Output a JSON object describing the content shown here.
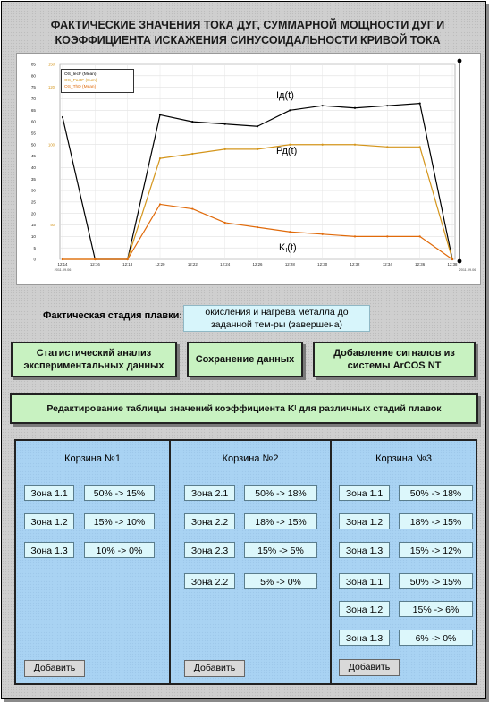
{
  "title_line1": "ФАКТИЧЕСКИЕ ЗНАЧЕНИЯ ТОКА ДУГ, СУММАРНОЙ МОЩНОСТИ ДУГ И",
  "title_line2": "КОЭФФИЦИЕНТА ИСКАЖЕНИЯ СИНУСОИДАЛЬНОСТИ КРИВОЙ ТОКА",
  "chart": {
    "legend": [
      "OS_IecF (Mean)",
      "OS_PactF (Sum)",
      "OS_ThD (Mean)"
    ],
    "labels": {
      "current": "Iд(t)",
      "power": "Рд(t)",
      "distortion_main": "K",
      "distortion_sub": "I",
      "distortion_tail": "(t)"
    },
    "left_ticks": [
      "85",
      "80",
      "75",
      "70",
      "65",
      "60",
      "55",
      "50",
      "45",
      "40",
      "35",
      "30",
      "25",
      "20",
      "15",
      "10",
      "5",
      "0"
    ],
    "right_ticks": [
      "150",
      "",
      "120",
      "",
      "",
      "",
      "",
      "100",
      "",
      "",
      "",
      "",
      "",
      "",
      "50",
      "",
      "",
      ""
    ],
    "x_ticks": [
      "12:14",
      "12:16",
      "12:18",
      "12:20",
      "12:22",
      "12:24",
      "12:26",
      "12:28",
      "12:30",
      "12:32",
      "12:34",
      "12:36",
      "12:38"
    ],
    "x_start_date": "2011.09.06",
    "x_end_date": "2011.09.06",
    "colors": {
      "current": "#000000",
      "power": "#d4951b",
      "distortion": "#e06a0a"
    }
  },
  "chart_data": {
    "type": "line",
    "x": [
      "12:14",
      "12:16",
      "12:18",
      "12:20",
      "12:22",
      "12:24",
      "12:26",
      "12:28",
      "12:30",
      "12:32",
      "12:34",
      "12:36",
      "12:38"
    ],
    "series": [
      {
        "name": "OS_IecF (Mean)",
        "values": [
          62,
          0,
          0,
          63,
          60,
          59,
          58,
          65,
          67,
          66,
          67,
          68,
          0
        ]
      },
      {
        "name": "OS_PactF (Sum)",
        "values": [
          0,
          0,
          0,
          44,
          46,
          48,
          48,
          50,
          50,
          50,
          49,
          49,
          0
        ]
      },
      {
        "name": "OS_ThD (Mean)",
        "values": [
          0,
          0,
          0,
          24,
          22,
          16,
          14,
          12,
          11,
          10,
          10,
          10,
          0
        ]
      }
    ],
    "ylim": [
      0,
      85
    ]
  },
  "stage": {
    "label": "Фактическая стадия плавки:",
    "value": "окисления и нагрева металла до заданной тем-ры (завершена)"
  },
  "buttons": {
    "stats": "Статистический анализ экспериментальных данных",
    "save": "Сохранение данных",
    "add_signals": "Добавление сигналов из системы ArCOS NT",
    "edit_table_pre": "Редактирование таблицы значений коэффициента K",
    "edit_table_sub": "I",
    "edit_table_post": " для различных стадий плавок"
  },
  "baskets": [
    {
      "title": "Корзина №1",
      "rows": [
        {
          "zone": "Зона 1.1",
          "value": "50% -> 15%"
        },
        {
          "zone": "Зона 1.2",
          "value": "15% -> 10%"
        },
        {
          "zone": "Зона 1.3",
          "value": "10% -> 0%"
        }
      ],
      "add": "Добавить"
    },
    {
      "title": "Корзина №2",
      "rows": [
        {
          "zone": "Зона 2.1",
          "value": "50% -> 18%"
        },
        {
          "zone": "Зона 2.2",
          "value": "18% -> 15%"
        },
        {
          "zone": "Зона 2.3",
          "value": "15% -> 5%"
        },
        {
          "zone": "Зона 2.2",
          "value": "5% -> 0%"
        }
      ],
      "add": "Добавить"
    },
    {
      "title": "Корзина №3",
      "rows": [
        {
          "zone": "Зона 1.1",
          "value": "50% -> 18%"
        },
        {
          "zone": "Зона 1.2",
          "value": "18% -> 15%"
        },
        {
          "zone": "Зона 1.3",
          "value": "15% -> 12%"
        },
        {
          "zone": "Зона 1.1",
          "value": "50% -> 15%"
        },
        {
          "zone": "Зона 1.2",
          "value": "15% -> 6%"
        },
        {
          "zone": "Зона 1.3",
          "value": "6% -> 0%"
        }
      ],
      "add": "Добавить"
    }
  ]
}
